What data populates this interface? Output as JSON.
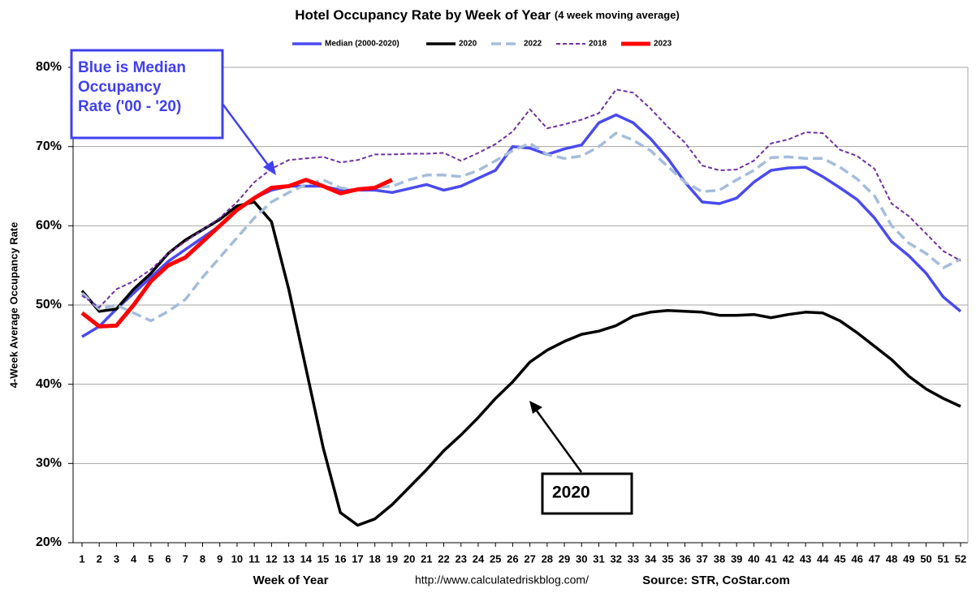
{
  "chart_data": {
    "type": "line",
    "title": "Hotel Occupancy Rate by  Week of Year",
    "subtitle": "(4 week moving average)",
    "x_label": "Week of Year",
    "y_label": "4-Week Average Occupancy Rate",
    "url": "http://www.calculatedriskblog.com/",
    "source": "Source: STR, CoStar.com",
    "legend": "top",
    "grid": true,
    "annotations": [
      {
        "lines": [
          "Blue is Median",
          "Occupancy",
          "Rate ('00 - '20)"
        ],
        "color": "#4040f0"
      },
      {
        "lines": [
          "2020"
        ],
        "color": "#000000"
      }
    ],
    "categories": [
      "1",
      "2",
      "3",
      "4",
      "5",
      "6",
      "7",
      "8",
      "9",
      "10",
      "11",
      "12",
      "13",
      "14",
      "15",
      "16",
      "17",
      "18",
      "19",
      "20",
      "21",
      "22",
      "23",
      "24",
      "25",
      "26",
      "27",
      "28",
      "29",
      "30",
      "31",
      "32",
      "33",
      "34",
      "35",
      "36",
      "37",
      "38",
      "39",
      "40",
      "41",
      "42",
      "43",
      "44",
      "45",
      "46",
      "47",
      "48",
      "49",
      "50",
      "51",
      "52"
    ],
    "ylim": [
      20,
      80
    ],
    "yticks": [
      {
        "value": 20,
        "label": "20%"
      },
      {
        "value": 30,
        "label": "30%"
      },
      {
        "value": 40,
        "label": "40%"
      },
      {
        "value": 50,
        "label": "50%"
      },
      {
        "value": 60,
        "label": "60%"
      },
      {
        "value": 70,
        "label": "70%"
      },
      {
        "value": 80,
        "label": "80%"
      }
    ],
    "series": [
      {
        "name": "Median (2000-2020)",
        "color": "#4a4af0",
        "dash": "solid",
        "width": 3.5,
        "values": [
          46,
          47.3,
          49.5,
          51.5,
          53.5,
          55.5,
          57,
          58.5,
          60,
          62,
          63.5,
          64.5,
          65,
          65,
          65,
          64.5,
          64.5,
          64.5,
          64.2,
          64.7,
          65.2,
          64.5,
          65,
          66,
          67,
          70,
          69.8,
          69,
          69.7,
          70.2,
          73,
          74,
          73,
          71,
          68.5,
          65.5,
          63,
          62.8,
          63.5,
          65.5,
          67,
          67.3,
          67.4,
          66.2,
          64.8,
          63.3,
          61,
          58,
          56.2,
          54,
          51,
          49.2
        ]
      },
      {
        "name": "2020",
        "color": "#000000",
        "dash": "solid",
        "width": 3.5,
        "values": [
          51.8,
          49.2,
          49.5,
          52,
          54,
          56.5,
          58.2,
          59.5,
          60.8,
          62.5,
          63,
          60.5,
          52,
          42,
          32,
          23.8,
          22.2,
          23,
          24.8,
          27,
          29.2,
          31.6,
          33.6,
          35.8,
          38.2,
          40.3,
          42.8,
          44.3,
          45.4,
          46.3,
          46.7,
          47.4,
          48.6,
          49.1,
          49.3,
          49.2,
          49.1,
          48.7,
          48.7,
          48.8,
          48.4,
          48.8,
          49.1,
          49,
          48,
          46.5,
          44.8,
          43.1,
          41,
          39.4,
          38.2,
          37.2
        ]
      },
      {
        "name": "2022",
        "color": "#a5bddb",
        "dash": "dashed",
        "width": 3.5,
        "values": [
          51.5,
          49.5,
          50,
          49,
          48,
          49.2,
          50.7,
          53.5,
          56,
          58.5,
          61,
          63,
          64.2,
          65.2,
          65.8,
          64.8,
          64.5,
          64.8,
          65,
          65.8,
          66.4,
          66.4,
          66.2,
          67,
          68.2,
          69.5,
          70.4,
          69,
          68.5,
          68.8,
          70,
          71.7,
          70.8,
          69.5,
          67.5,
          65.5,
          64.3,
          64.5,
          65.8,
          67,
          68.6,
          68.7,
          68.5,
          68.5,
          67.4,
          65.9,
          63.8,
          60,
          57.8,
          56.5,
          54.7,
          55.8
        ]
      },
      {
        "name": "2018",
        "color": "#7030a0",
        "dash": "dotted",
        "width": 2,
        "values": [
          51.2,
          49.7,
          52,
          53,
          54.5,
          56.5,
          58,
          59.5,
          61,
          63,
          65.5,
          67.2,
          68.3,
          68.5,
          68.7,
          68,
          68.3,
          69,
          69,
          69.1,
          69.1,
          69.2,
          68.2,
          69.2,
          70.3,
          71.9,
          74.7,
          72.3,
          72.8,
          73.4,
          74.2,
          77.2,
          76.8,
          74.8,
          72.5,
          70.5,
          67.6,
          67,
          67.1,
          68.2,
          70.4,
          70.9,
          71.8,
          71.7,
          69.6,
          68.8,
          67.2,
          62.8,
          61.2,
          59,
          56.8,
          55.6
        ]
      },
      {
        "name": "2023",
        "color": "#ff0000",
        "dash": "solid",
        "width": 5,
        "values": [
          49,
          47.3,
          47.4,
          50,
          53,
          55,
          56,
          58,
          60,
          62,
          63.5,
          64.8,
          65,
          65.8,
          65,
          64.1,
          64.6,
          64.8,
          65.8,
          null,
          null,
          null,
          null,
          null,
          null,
          null,
          null,
          null,
          null,
          null,
          null,
          null,
          null,
          null,
          null,
          null,
          null,
          null,
          null,
          null,
          null,
          null,
          null,
          null,
          null,
          null,
          null,
          null,
          null,
          null,
          null,
          null
        ]
      }
    ]
  }
}
